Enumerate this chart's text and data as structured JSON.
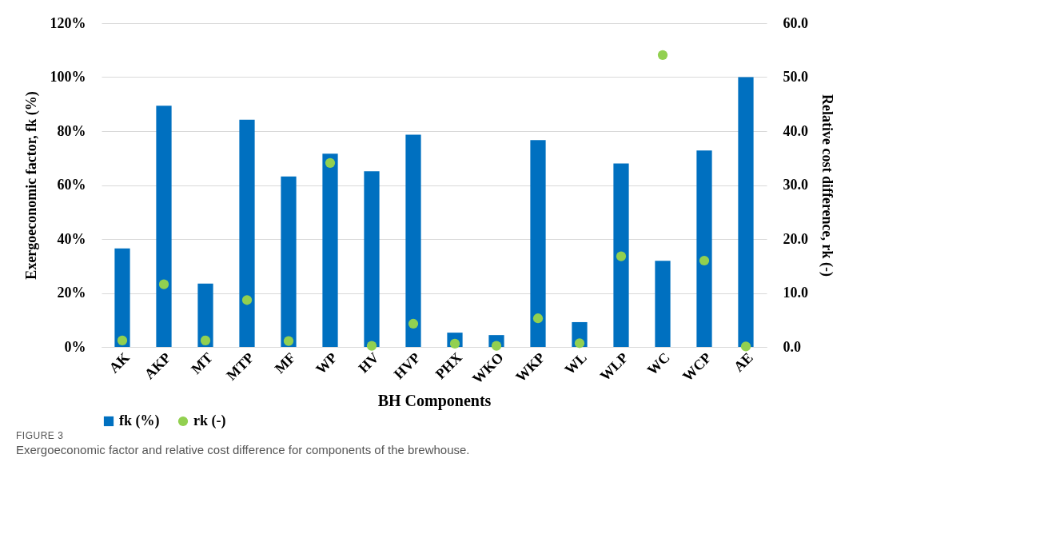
{
  "chart_data": {
    "type": "bar",
    "categories": [
      "AK",
      "AKP",
      "MT",
      "MTP",
      "MF",
      "WP",
      "HV",
      "HVP",
      "PHX",
      "WKO",
      "WKP",
      "WL",
      "WLP",
      "WC",
      "WCP",
      "AE"
    ],
    "series": [
      {
        "name": "fk (%)",
        "color": "#0070c0",
        "values": [
          36.5,
          89.4,
          23.5,
          84.2,
          63.2,
          71.6,
          65.1,
          78.7,
          5.3,
          4.4,
          76.7,
          9.2,
          68.0,
          31.9,
          72.8,
          100
        ]
      },
      {
        "name": "rk  (-)",
        "type": "scatter",
        "axis": "y2",
        "color": "#92d050",
        "values": [
          1.2,
          11.6,
          1.2,
          8.7,
          1.1,
          34.1,
          0.2,
          4.3,
          0.6,
          0.2,
          5.3,
          0.7,
          16.8,
          54.1,
          16.0,
          0.1
        ]
      }
    ],
    "xlabel": "BH Components",
    "ylabel": "Exergoeconomic factor, fk (%)",
    "y2label": "Relative cost difference, rk (-)",
    "ylim": [
      0,
      120
    ],
    "yticks": [
      {
        "value": 0,
        "label": "0%"
      },
      {
        "value": 20,
        "label": "20%"
      },
      {
        "value": 40,
        "label": "40%"
      },
      {
        "value": 60,
        "label": "60%"
      },
      {
        "value": 80,
        "label": "80%"
      },
      {
        "value": 100,
        "label": "100%"
      },
      {
        "value": 120,
        "label": "120%"
      }
    ],
    "y2lim": [
      0,
      60
    ],
    "y2ticks": [
      {
        "value": 0,
        "label": "0.0"
      },
      {
        "value": 10,
        "label": "10.0"
      },
      {
        "value": 20,
        "label": "20.0"
      },
      {
        "value": 30,
        "label": "30.0"
      },
      {
        "value": 40,
        "label": "40.0"
      },
      {
        "value": 50,
        "label": "50.0"
      },
      {
        "value": 60,
        "label": "60.0"
      }
    ],
    "grid": "y",
    "legend": "bottom left",
    "marker": "circle",
    "annotations": [
      "FIGURE 3",
      "Exergoeconomic factor and relative cost difference for components of the brewhouse."
    ]
  }
}
